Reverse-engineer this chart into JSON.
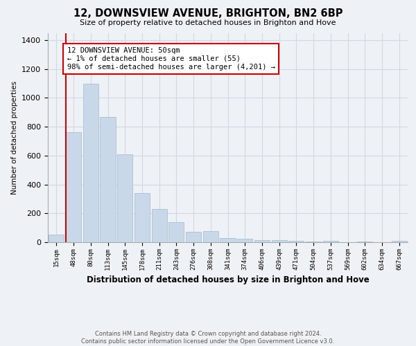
{
  "title": "12, DOWNSVIEW AVENUE, BRIGHTON, BN2 6BP",
  "subtitle": "Size of property relative to detached houses in Brighton and Hove",
  "xlabel": "Distribution of detached houses by size in Brighton and Hove",
  "ylabel": "Number of detached properties",
  "footer_line1": "Contains HM Land Registry data © Crown copyright and database right 2024.",
  "footer_line2": "Contains public sector information licensed under the Open Government Licence v3.0.",
  "bar_labels": [
    "15sqm",
    "48sqm",
    "80sqm",
    "113sqm",
    "145sqm",
    "178sqm",
    "211sqm",
    "243sqm",
    "276sqm",
    "308sqm",
    "341sqm",
    "374sqm",
    "406sqm",
    "439sqm",
    "471sqm",
    "504sqm",
    "537sqm",
    "569sqm",
    "602sqm",
    "634sqm",
    "667sqm"
  ],
  "bar_values": [
    55,
    760,
    1100,
    870,
    610,
    340,
    230,
    140,
    70,
    75,
    30,
    22,
    15,
    12,
    10,
    5,
    8,
    2,
    4,
    2,
    8
  ],
  "bar_color": "#c8d8e8",
  "bar_edge_color": "#a0b8cc",
  "highlight_line_color": "#cc0000",
  "annotation_text": "12 DOWNSVIEW AVENUE: 50sqm\n← 1% of detached houses are smaller (55)\n98% of semi-detached houses are larger (4,201) →",
  "annotation_box_color": "#ffffff",
  "annotation_box_edge": "#cc0000",
  "ylim": [
    0,
    1450
  ],
  "yticks": [
    0,
    200,
    400,
    600,
    800,
    1000,
    1200,
    1400
  ],
  "grid_color": "#d0d8e0",
  "bg_color": "#eef2f6"
}
